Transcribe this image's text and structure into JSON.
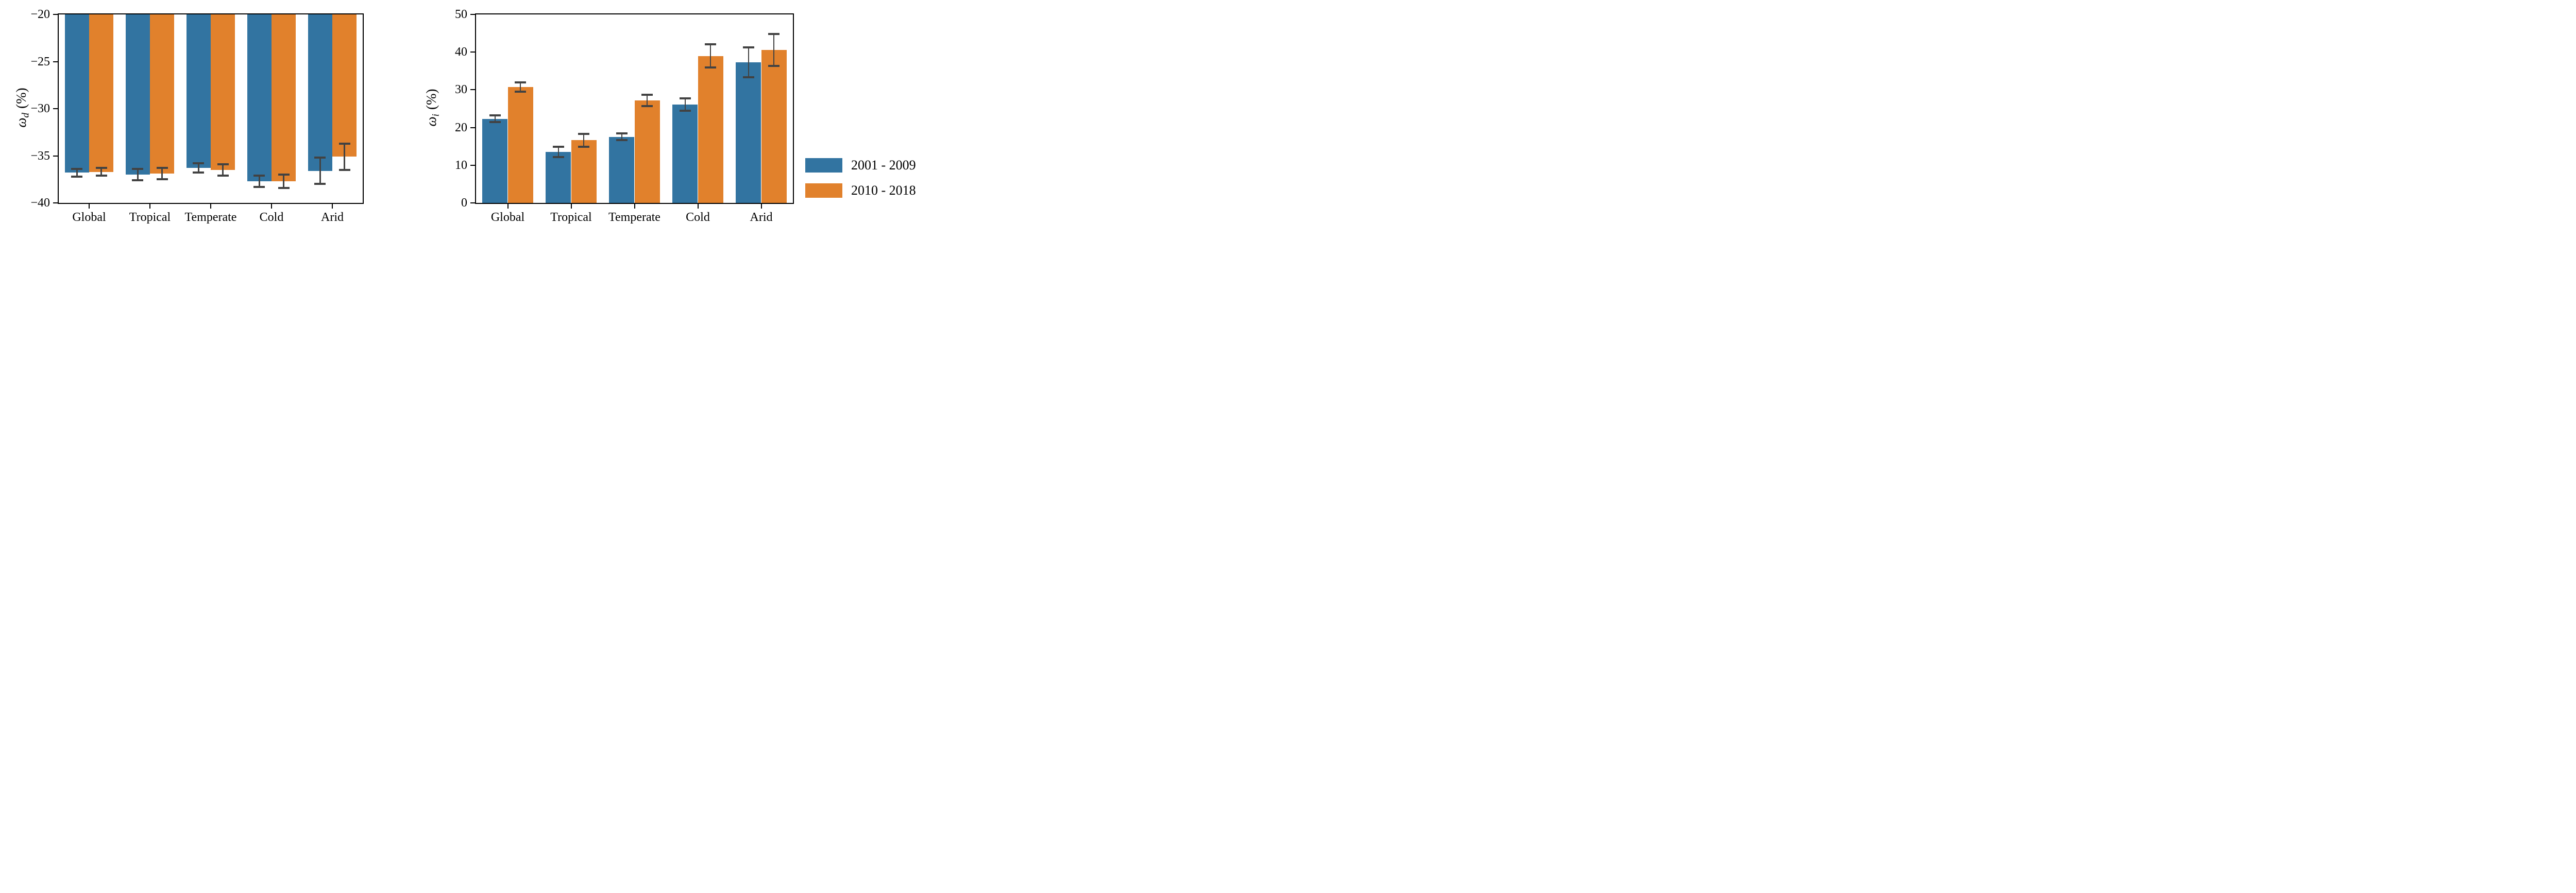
{
  "figure": {
    "background": "#ffffff",
    "axis_color": "#000000",
    "errorbar_color": "#424242"
  },
  "legend": {
    "position": "right-of-figure",
    "items": [
      {
        "label": "2001 - 2009",
        "color": "#3274A1"
      },
      {
        "label": "2010 - 2018",
        "color": "#E1812C"
      }
    ]
  },
  "chart_data": [
    {
      "id": "omega_d",
      "type": "bar",
      "title": "",
      "xlabel": "",
      "ylabel": "omega_d (%)",
      "ylabel_parts": {
        "symbol": "ω",
        "subscript": "d",
        "suffix": "(%)"
      },
      "categories": [
        "Global",
        "Tropical",
        "Temperate",
        "Cold",
        "Arid"
      ],
      "series": [
        {
          "name": "2001 - 2009",
          "color": "#3274A1",
          "values": [
            -36.8,
            -37.0,
            -36.3,
            -37.7,
            -36.6
          ],
          "errors": [
            0.4,
            0.6,
            0.5,
            0.6,
            1.4
          ]
        },
        {
          "name": "2010 - 2018",
          "color": "#E1812C",
          "values": [
            -36.7,
            -36.9,
            -36.5,
            -37.7,
            -35.1
          ],
          "errors": [
            0.4,
            0.6,
            0.6,
            0.7,
            1.4
          ]
        }
      ],
      "ylim": [
        -40,
        -20
      ],
      "yticks": [
        -20,
        -25,
        -30,
        -35,
        -40
      ],
      "ytick_labels": [
        "−20",
        "−25",
        "−30",
        "−35",
        "−40"
      ],
      "bars_anchor": "top",
      "grid": false,
      "legend_shown_here": false
    },
    {
      "id": "omega_i",
      "type": "bar",
      "title": "",
      "xlabel": "",
      "ylabel": "omega_i (%)",
      "ylabel_parts": {
        "symbol": "ω",
        "subscript": "i",
        "suffix": "(%)"
      },
      "categories": [
        "Global",
        "Tropical",
        "Temperate",
        "Cold",
        "Arid"
      ],
      "series": [
        {
          "name": "2001 - 2009",
          "color": "#3274A1",
          "values": [
            22.3,
            13.5,
            17.5,
            26.1,
            37.3
          ],
          "errors": [
            0.9,
            1.4,
            0.9,
            1.7,
            3.9
          ]
        },
        {
          "name": "2010 - 2018",
          "color": "#E1812C",
          "values": [
            30.7,
            16.6,
            27.2,
            39.0,
            40.6
          ],
          "errors": [
            1.2,
            1.7,
            1.5,
            3.1,
            4.2
          ]
        }
      ],
      "ylim": [
        0,
        50
      ],
      "yticks": [
        0,
        10,
        20,
        30,
        40,
        50
      ],
      "ytick_labels": [
        "0",
        "10",
        "20",
        "30",
        "40",
        "50"
      ],
      "bars_anchor": "bottom",
      "grid": false,
      "legend_shown_here": false
    }
  ]
}
